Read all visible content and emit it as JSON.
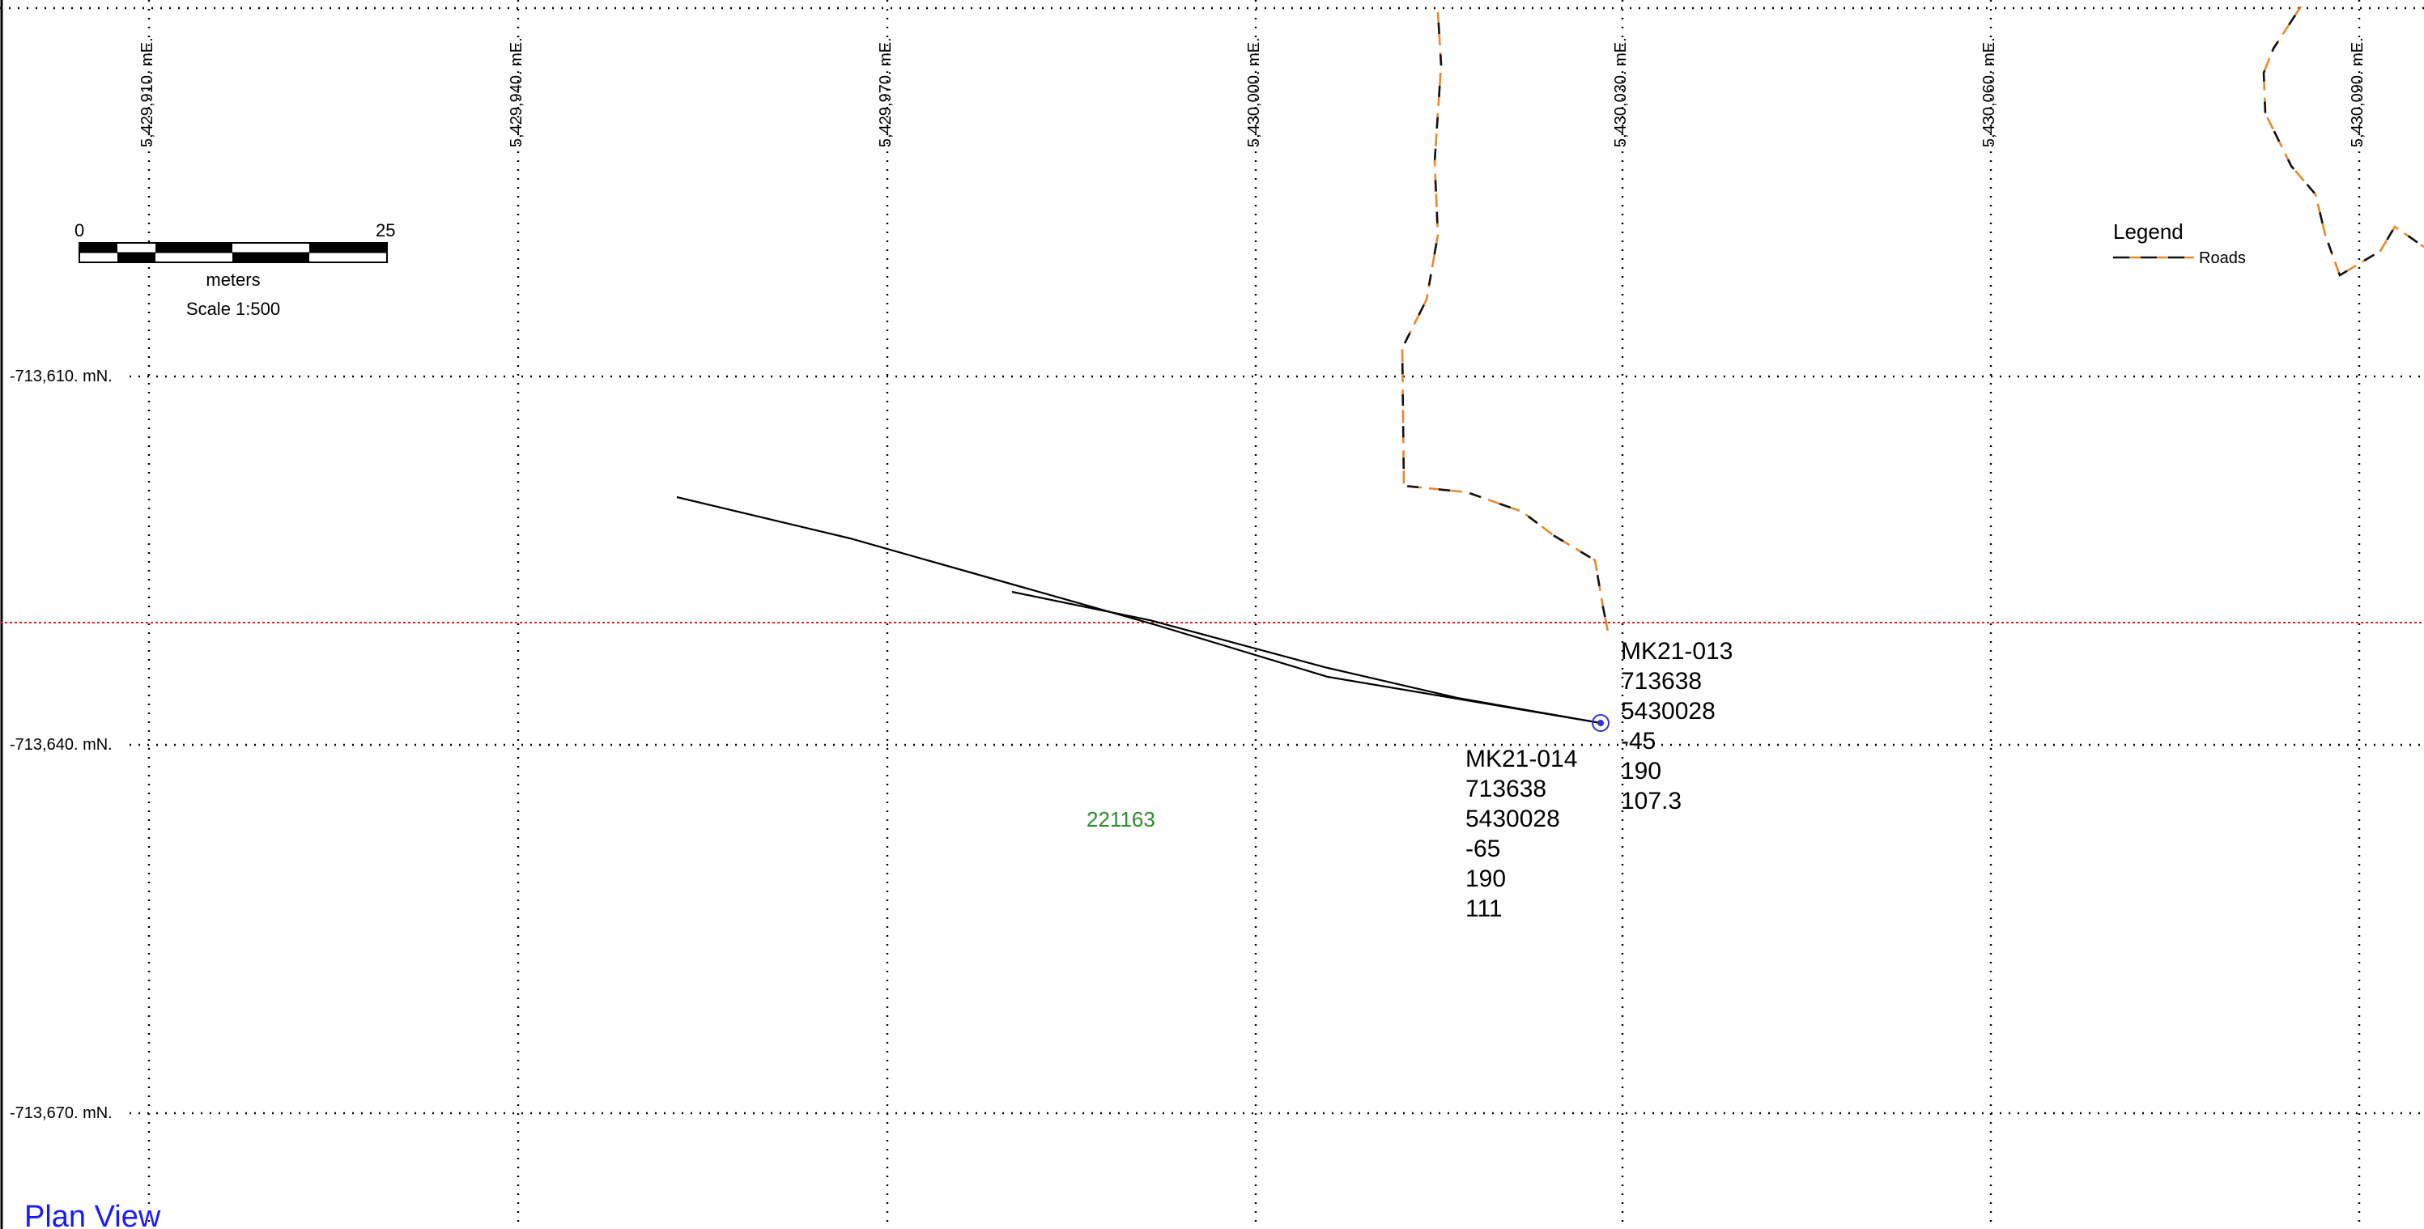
{
  "grid": {
    "easting_labels": [
      "5,429,910. mE.",
      "5,429,940. mE.",
      "5,429,970. mE.",
      "5,430,000. mE.",
      "5,430,030. mE.",
      "5,430,060. mE.",
      "5,430,090. mE."
    ],
    "northing_labels": [
      "-713,610. mN.",
      "-713,640. mN.",
      "-713,670. mN."
    ]
  },
  "scale_bar": {
    "start_label": "0",
    "end_label": "25",
    "unit": "meters",
    "scale_text": "Scale 1:500"
  },
  "legend": {
    "title": "Legend",
    "items": [
      {
        "label": "Roads",
        "colors": [
          "#111111",
          "#e8892b"
        ]
      }
    ]
  },
  "drillholes": [
    {
      "lines": [
        "MK21-013",
        "713638",
        "5430028",
        "-45",
        "190",
        "107.3"
      ]
    },
    {
      "lines": [
        "MK21-014",
        "713638",
        "5430028",
        "-65",
        "190",
        "111"
      ]
    }
  ],
  "claim_label": "221163",
  "view_title": "Plan View",
  "colors": {
    "section_line": "#e02020",
    "claim_label": "#2e8b2e",
    "view_title": "#1a1aff",
    "collar": "#3333cc",
    "road_orange": "#e8892b",
    "road_black": "#111111"
  }
}
